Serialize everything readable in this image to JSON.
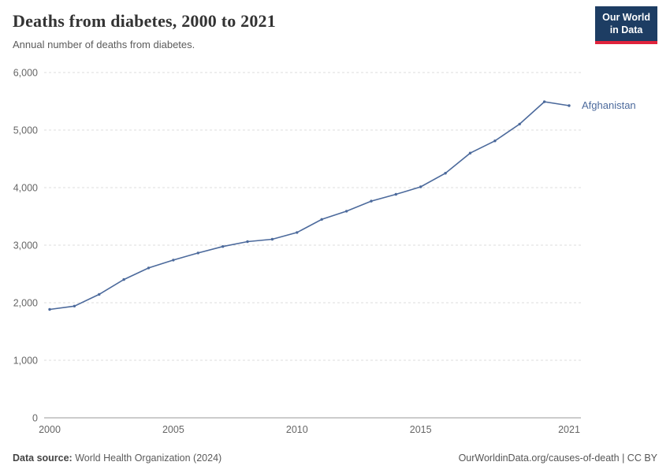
{
  "header": {
    "title": "Deaths from diabetes, 2000 to 2021",
    "subtitle": "Annual number of deaths from diabetes.",
    "logo": {
      "line1": "Our World",
      "line2": "in Data"
    }
  },
  "footer": {
    "source_label": "Data source:",
    "source_text": "World Health Organization (2024)",
    "license": "OurWorldinData.org/causes-of-death | CC BY"
  },
  "brand": {
    "logo_bg": "#1d3d63",
    "logo_accent": "#e0233c"
  },
  "chart_data": {
    "type": "line",
    "title": "Deaths from diabetes, 2000 to 2021",
    "subtitle": "Annual number of deaths from diabetes.",
    "xlabel": "",
    "ylabel": "",
    "xlim": [
      2000,
      2021
    ],
    "ylim": [
      0,
      6000
    ],
    "yticks": [
      0,
      1000,
      2000,
      3000,
      4000,
      5000,
      6000
    ],
    "xticks": [
      2000,
      2005,
      2010,
      2015,
      2021
    ],
    "grid": "horizontal-dashed",
    "legend_position": "line-end-label",
    "x": [
      2000,
      2001,
      2002,
      2003,
      2004,
      2005,
      2006,
      2007,
      2008,
      2009,
      2010,
      2011,
      2012,
      2013,
      2014,
      2015,
      2016,
      2017,
      2018,
      2019,
      2020,
      2021
    ],
    "series": [
      {
        "name": "Afghanistan",
        "color": "#4c6a9c",
        "values": [
          1884,
          1941,
          2145,
          2403,
          2604,
          2741,
          2864,
          2977,
          3061,
          3103,
          3221,
          3448,
          3590,
          3766,
          3884,
          4014,
          4251,
          4600,
          4813,
          5104,
          5492,
          5424
        ]
      }
    ]
  }
}
